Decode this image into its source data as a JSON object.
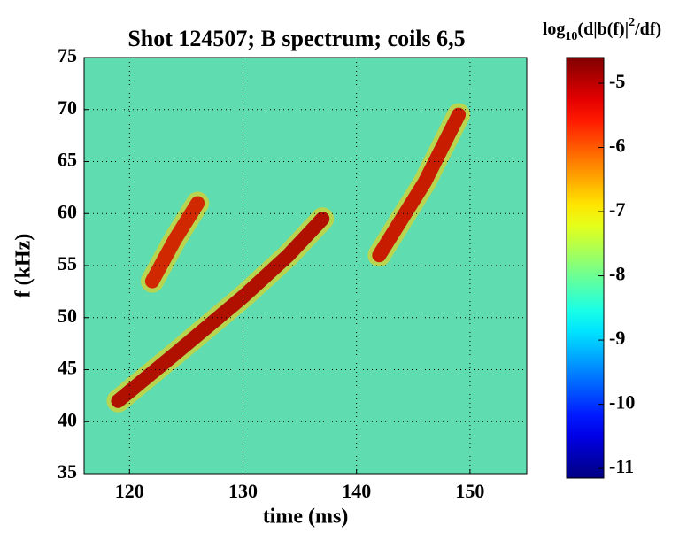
{
  "chart_data": {
    "type": "spectrogram",
    "title": "Shot 124507; B spectrum; coils 6,5",
    "xlabel": "time (ms)",
    "ylabel": "f (kHz)",
    "colorbar_label": {
      "prefix": "log",
      "subscript": "10",
      "main": "(d|b(f)|",
      "superscript": "2",
      "suffix": "/df)"
    },
    "xlim": [
      116,
      155
    ],
    "ylim": [
      35,
      75
    ],
    "xticks": [
      120,
      130,
      140,
      150
    ],
    "yticks": [
      35,
      40,
      45,
      50,
      55,
      60,
      65,
      70,
      75
    ],
    "clim": [
      -11.15,
      -4.6
    ],
    "cticks": [
      -5,
      -6,
      -7,
      -8,
      -9,
      -10,
      -11
    ],
    "grid": true,
    "background_color": "#5fdcb0",
    "series": [
      {
        "color": "#b01000",
        "x": [
          119,
          124,
          130,
          134,
          137
        ],
        "y": [
          42,
          46.5,
          52,
          56,
          59.5
        ]
      },
      {
        "color": "#d02800",
        "x": [
          122,
          124,
          126
        ],
        "y": [
          53.5,
          57.5,
          61
        ]
      },
      {
        "color": "#c81c00",
        "x": [
          142,
          144,
          146,
          149
        ],
        "y": [
          56,
          59.5,
          63,
          69.5
        ]
      }
    ]
  }
}
